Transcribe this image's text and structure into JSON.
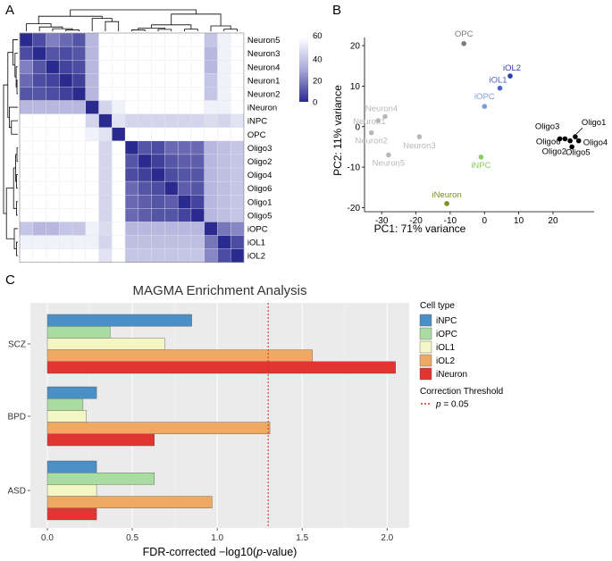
{
  "panels": {
    "A": "A",
    "B": "B",
    "C": "C"
  },
  "chart_data": [
    {
      "type": "heatmap",
      "panel": "A",
      "row_labels": [
        "Neuron5",
        "Neuron3",
        "Neuron4",
        "Neuron1",
        "Neuron2",
        "iNeuron",
        "iNPC",
        "OPC",
        "Oligo3",
        "Oligo2",
        "Oligo4",
        "Oligo6",
        "Oligo1",
        "Oligo5",
        "iOPC",
        "iOL1",
        "iOL2"
      ],
      "colorbar": {
        "ticks": [
          "60",
          "40",
          "20",
          "0"
        ],
        "tick_values": [
          60,
          40,
          20,
          0
        ],
        "range": [
          0,
          60
        ],
        "low_color": "#2b2b8f",
        "high_color": "#ffffff"
      },
      "values": [
        [
          0,
          8,
          20,
          15,
          10,
          35,
          60,
          60,
          60,
          60,
          60,
          60,
          60,
          60,
          40,
          55,
          60
        ],
        [
          8,
          0,
          10,
          8,
          10,
          35,
          60,
          60,
          60,
          60,
          60,
          60,
          60,
          60,
          35,
          55,
          60
        ],
        [
          20,
          10,
          0,
          6,
          8,
          35,
          60,
          60,
          60,
          60,
          60,
          60,
          60,
          60,
          35,
          55,
          60
        ],
        [
          15,
          8,
          6,
          0,
          5,
          35,
          60,
          60,
          60,
          60,
          60,
          60,
          60,
          60,
          40,
          55,
          60
        ],
        [
          10,
          10,
          8,
          5,
          0,
          35,
          60,
          60,
          60,
          60,
          60,
          60,
          60,
          60,
          40,
          55,
          60
        ],
        [
          35,
          35,
          35,
          35,
          35,
          0,
          45,
          55,
          60,
          60,
          60,
          60,
          60,
          60,
          55,
          55,
          60
        ],
        [
          60,
          60,
          60,
          60,
          60,
          45,
          0,
          50,
          45,
          45,
          45,
          45,
          45,
          45,
          48,
          45,
          50
        ],
        [
          60,
          60,
          60,
          60,
          60,
          55,
          50,
          0,
          60,
          60,
          60,
          60,
          60,
          60,
          60,
          60,
          60
        ],
        [
          60,
          60,
          60,
          60,
          60,
          60,
          45,
          60,
          0,
          10,
          8,
          15,
          15,
          15,
          35,
          38,
          40
        ],
        [
          60,
          60,
          60,
          60,
          60,
          60,
          45,
          60,
          10,
          0,
          5,
          10,
          12,
          12,
          35,
          38,
          40
        ],
        [
          60,
          60,
          60,
          60,
          60,
          60,
          45,
          60,
          8,
          5,
          0,
          8,
          10,
          10,
          35,
          38,
          40
        ],
        [
          60,
          60,
          60,
          60,
          60,
          60,
          45,
          60,
          15,
          10,
          8,
          0,
          12,
          10,
          35,
          38,
          40
        ],
        [
          60,
          60,
          60,
          60,
          60,
          60,
          45,
          60,
          15,
          12,
          10,
          12,
          0,
          6,
          35,
          38,
          40
        ],
        [
          60,
          60,
          60,
          60,
          60,
          60,
          45,
          60,
          15,
          12,
          10,
          10,
          6,
          0,
          35,
          38,
          40
        ],
        [
          40,
          35,
          35,
          40,
          40,
          55,
          48,
          60,
          35,
          35,
          35,
          35,
          35,
          35,
          0,
          18,
          22
        ],
        [
          55,
          55,
          55,
          55,
          55,
          55,
          45,
          60,
          38,
          38,
          38,
          38,
          38,
          38,
          18,
          0,
          8
        ],
        [
          60,
          60,
          60,
          60,
          60,
          60,
          50,
          60,
          40,
          40,
          40,
          40,
          40,
          40,
          22,
          8,
          0
        ]
      ]
    },
    {
      "type": "scatter",
      "panel": "B",
      "xlabel": "PC1: 71% variance",
      "ylabel": "PC2: 11% variance",
      "xlim": [
        -35,
        32
      ],
      "ylim": [
        -21,
        22
      ],
      "xticks": [
        -30,
        -20,
        -10,
        0,
        10,
        20
      ],
      "yticks": [
        20,
        10,
        0,
        -10,
        -20
      ],
      "points": [
        {
          "label": "OPC",
          "x": -6,
          "y": 20.5,
          "color": "#7a7a7a"
        },
        {
          "label": "iOL2",
          "x": 7.5,
          "y": 12.5,
          "color": "#2f3ea8"
        },
        {
          "label": "iOL1",
          "x": 4.5,
          "y": 9.5,
          "color": "#4a63c4"
        },
        {
          "label": "iOPC",
          "x": 0,
          "y": 5,
          "color": "#7b9ee0"
        },
        {
          "label": "Neuron4",
          "x": -29,
          "y": 2.5,
          "color": "#b8b8b8"
        },
        {
          "label": "Neuron1",
          "x": -31,
          "y": 1.5,
          "color": "#b8b8b8"
        },
        {
          "label": "Neuron2",
          "x": -33,
          "y": -1.5,
          "color": "#b8b8b8"
        },
        {
          "label": "Neuron3",
          "x": -19,
          "y": -2.5,
          "color": "#b8b8b8"
        },
        {
          "label": "Neuron5",
          "x": -28,
          "y": -7,
          "color": "#b8b8b8"
        },
        {
          "label": "iNPC",
          "x": -1,
          "y": -7.5,
          "color": "#8ccc5a"
        },
        {
          "label": "iNeuron",
          "x": -11,
          "y": -19,
          "color": "#7d8f1a"
        },
        {
          "label": "Oligo3",
          "x": 22,
          "y": -3,
          "color": "#000000"
        },
        {
          "label": "Oligo6",
          "x": 23.5,
          "y": -3,
          "color": "#000000"
        },
        {
          "label": "Oligo2",
          "x": 25,
          "y": -3.5,
          "color": "#000000"
        },
        {
          "label": "Oligo1",
          "x": 26.5,
          "y": -2.5,
          "color": "#000000"
        },
        {
          "label": "Oligo4",
          "x": 27.5,
          "y": -3.5,
          "color": "#000000"
        },
        {
          "label": "Oligo5",
          "x": 25.5,
          "y": -5,
          "color": "#000000"
        }
      ]
    },
    {
      "type": "bar",
      "orientation": "horizontal",
      "panel": "C",
      "title": "MAGMA Enrichment Analysis",
      "xlabel_prefix": "FDR-corrected −log10(",
      "xlabel_italic": "p",
      "xlabel_suffix": "-value)",
      "xlim": [
        -0.1,
        2.13
      ],
      "xticks": [
        "0.0",
        "0.5",
        "1.0",
        "1.5",
        "2.0"
      ],
      "xtick_values": [
        0,
        0.5,
        1.0,
        1.5,
        2.0
      ],
      "categories": [
        "SCZ",
        "BPD",
        "ASD"
      ],
      "series": [
        {
          "name": "iNPC",
          "color": "#4a8fc5",
          "values": [
            0.85,
            0.29,
            0.29
          ]
        },
        {
          "name": "iOPC",
          "color": "#a8dca0",
          "values": [
            0.37,
            0.21,
            0.63
          ]
        },
        {
          "name": "iOL1",
          "color": "#f3f7c3",
          "values": [
            0.69,
            0.23,
            0.29
          ]
        },
        {
          "name": "iOL2",
          "color": "#f0a962",
          "values": [
            1.56,
            1.31,
            0.97
          ]
        },
        {
          "name": "iNeuron",
          "color": "#e03530",
          "values": [
            2.05,
            0.63,
            0.29
          ]
        }
      ],
      "threshold": {
        "value": 1.3,
        "color": "#d7301f"
      },
      "legend_title": "Cell type",
      "threshold_legend_title": "Correction Threshold",
      "threshold_label_italic": "p",
      "threshold_label_rest": " = 0.05"
    }
  ]
}
